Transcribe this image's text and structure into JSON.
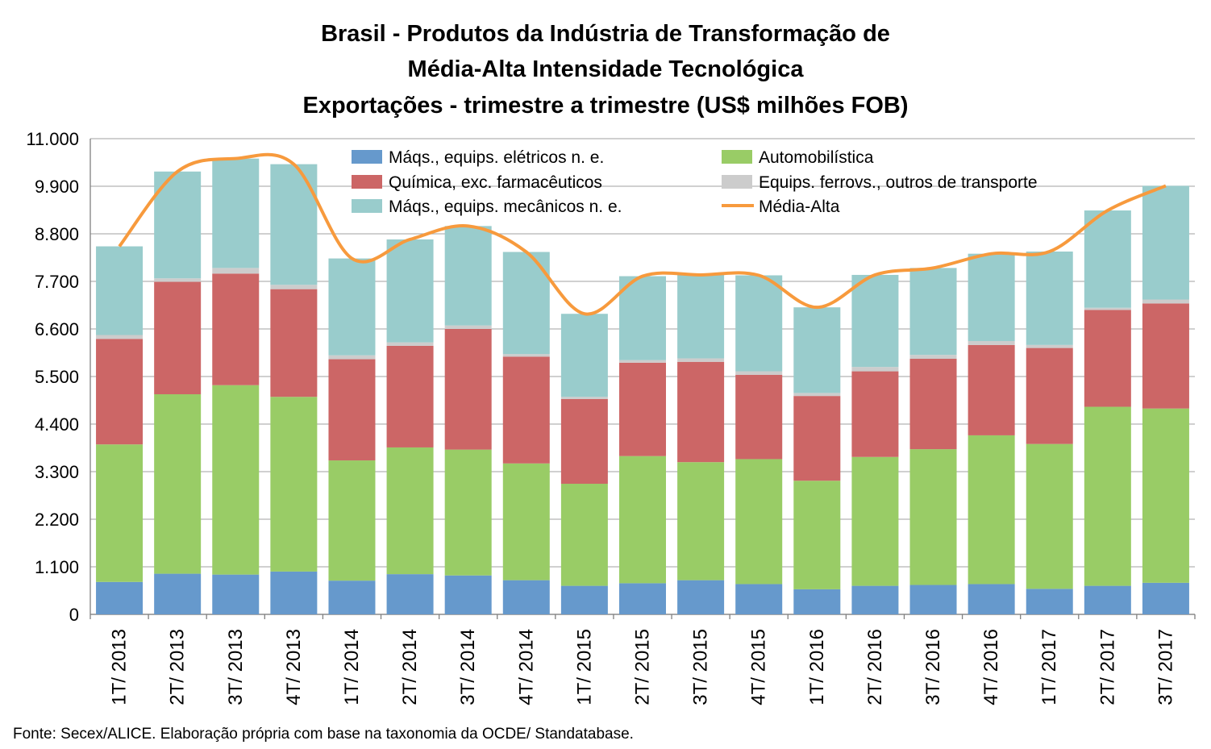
{
  "titles": [
    "Brasil - Produtos da Indústria de Transformação de",
    "Média-Alta Intensidade Tecnológica",
    "Exportações - trimestre a trimestre (US$ milhões FOB)"
  ],
  "source": "Fonte: Secex/ALICE. Elaboração própria com base na taxonomia da OCDE/ Standatabase.",
  "colors": {
    "eletricos": "#6699CC",
    "automobilistica": "#99CC66",
    "quimica": "#CC6666",
    "ferrovs": "#CCCCCC",
    "mecanicos": "#99CCCC",
    "media_alta": "#F79A3D",
    "grid": "#B3B3B3"
  },
  "chart_data": {
    "type": "bar",
    "stacked": true,
    "ylim": [
      0,
      11000
    ],
    "yticks": [
      "0",
      "1.100",
      "2.200",
      "3.300",
      "4.400",
      "5.500",
      "6.600",
      "7.700",
      "8.800",
      "9.900",
      "11.000"
    ],
    "ytick_values": [
      0,
      1100,
      2200,
      3300,
      4400,
      5500,
      6600,
      7700,
      8800,
      9900,
      11000
    ],
    "grid": true,
    "legend_position": "top",
    "categories": [
      "1T/ 2013",
      "2T/ 2013",
      "3T/ 2013",
      "4T/ 2013",
      "1T/ 2014",
      "2T/ 2014",
      "3T/ 2014",
      "4T/ 2014",
      "1T/ 2015",
      "2T/ 2015",
      "3T/ 2015",
      "4T/ 2015",
      "1T/ 2016",
      "2T/ 2016",
      "3T/ 2016",
      "4T/ 2016",
      "1T/ 2017",
      "2T/ 2017",
      "3T/ 2017"
    ],
    "series": [
      {
        "key": "eletricos",
        "name": "Máqs., equips. elétricos n. e.",
        "values": [
          750,
          940,
          920,
          990,
          780,
          930,
          900,
          790,
          660,
          720,
          790,
          700,
          580,
          660,
          680,
          700,
          590,
          660,
          730
        ]
      },
      {
        "key": "automobilistica",
        "name": "Automobilística",
        "values": [
          3180,
          4150,
          4380,
          4040,
          2780,
          2930,
          2910,
          2700,
          2360,
          2940,
          2730,
          2890,
          2510,
          2980,
          3140,
          3440,
          3350,
          4140,
          4030
        ]
      },
      {
        "key": "quimica",
        "name": "Química, exc. farmacêuticos",
        "values": [
          2440,
          2600,
          2580,
          2490,
          2340,
          2350,
          2790,
          2470,
          1960,
          2160,
          2320,
          1950,
          1960,
          1980,
          2090,
          2090,
          2220,
          2240,
          2430
        ]
      },
      {
        "key": "ferrovs",
        "name": "Equips. ferrovs., outros de transporte",
        "values": [
          90,
          80,
          130,
          100,
          90,
          80,
          80,
          60,
          50,
          60,
          80,
          80,
          70,
          100,
          90,
          90,
          70,
          50,
          90
        ]
      },
      {
        "key": "mecanicos",
        "name": "Máqs., equips. mecânicos  n. e.",
        "values": [
          2050,
          2470,
          2530,
          2790,
          2240,
          2380,
          2300,
          2360,
          1920,
          1940,
          1930,
          2220,
          1980,
          2130,
          2010,
          2020,
          2160,
          2250,
          2630
        ]
      }
    ],
    "line_series": {
      "key": "media_alta",
      "name": "Média-Alta",
      "values": [
        8510,
        10240,
        10540,
        10410,
        8230,
        8670,
        8980,
        8380,
        6950,
        7820,
        7850,
        7840,
        7100,
        7850,
        8010,
        8340,
        8390,
        9340,
        9910
      ]
    }
  }
}
